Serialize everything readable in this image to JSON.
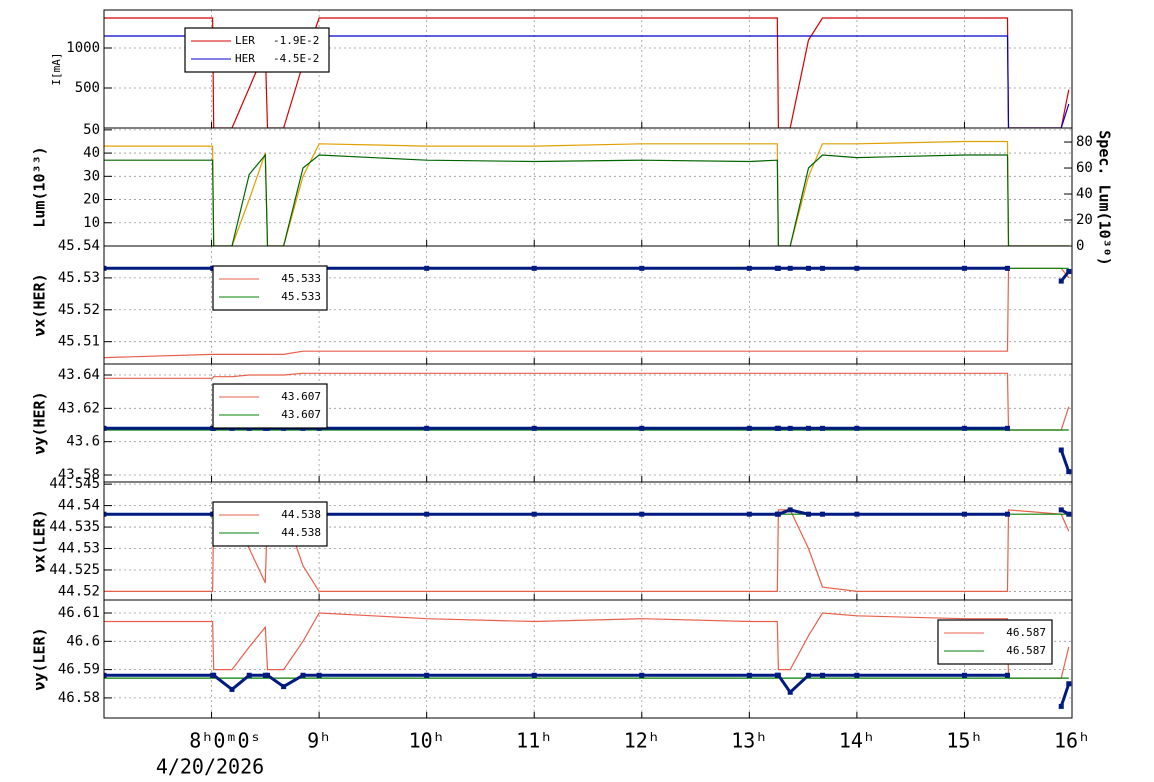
{
  "chart_data": {
    "type": "line",
    "xlim": [
      7,
      16
    ],
    "xticks": [
      {
        "value": 8,
        "label": "8ʰ0ᵐ0ˢ"
      },
      {
        "value": 9,
        "label": "9ʰ"
      },
      {
        "value": 10,
        "label": "10ʰ"
      },
      {
        "value": 11,
        "label": "11ʰ"
      },
      {
        "value": 12,
        "label": "12ʰ"
      },
      {
        "value": 13,
        "label": "13ʰ"
      },
      {
        "value": 14,
        "label": "14ʰ"
      },
      {
        "value": 15,
        "label": "15ʰ"
      },
      {
        "value": 16,
        "label": "16ʰ"
      }
    ],
    "xlabel": "4/20/2026",
    "grid": true,
    "x": [
      7.0,
      8.01,
      8.02,
      8.19,
      8.35,
      8.5,
      8.52,
      8.67,
      8.85,
      9.0,
      10,
      11,
      12,
      13,
      13.26,
      13.27,
      13.38,
      13.55,
      13.68,
      14,
      15,
      15.4,
      15.41,
      15.9,
      15.97
    ],
    "panels": [
      {
        "ylabel": "I[mA]",
        "ylim": [
          0,
          1475
        ],
        "yticks": [
          500,
          1000
        ],
        "legend": "upper left",
        "series": [
          {
            "name": "LER",
            "legend_value": "-1.9E-2",
            "color": "#d40000",
            "values": [
              1375,
              1375,
              0,
              0,
              500,
              975,
              0,
              0,
              800,
              1375,
              1375,
              1375,
              1375,
              1375,
              1375,
              0,
              0,
              1100,
              1375,
              1375,
              1375,
              1375,
              0,
              0,
              480
            ]
          },
          {
            "name": "HER",
            "legend_value": "-4.5E-2",
            "color": "#0000cc",
            "values": [
              1150,
              1150,
              1150,
              1150,
              1150,
              1150,
              1150,
              1150,
              1150,
              1150,
              1150,
              1150,
              1150,
              1150,
              1150,
              1150,
              1150,
              1150,
              1150,
              1150,
              1150,
              1150,
              0,
              0,
              300
            ]
          }
        ]
      },
      {
        "ylabel": "Lum(10³³)",
        "ylim": [
          0,
          50.8
        ],
        "yticks": [
          10,
          20,
          30,
          40,
          50
        ],
        "y2label": "Spec. Lum(10³⁰)",
        "y2lim": [
          0,
          90.8
        ],
        "y2ticks": [
          0,
          20,
          40,
          60,
          80
        ],
        "series": [
          {
            "color": "#e0a000",
            "values": [
              43,
              43,
              0,
              0,
              20,
              40,
              0,
              0,
              30,
              44,
              43,
              43,
              44,
              44,
              44,
              0,
              0,
              30,
              44,
              44,
              45,
              45,
              0,
              0,
              0
            ]
          },
          {
            "color": "#006400",
            "axis": "y2",
            "values": [
              66,
              66,
              0,
              0,
              55,
              70,
              0,
              0,
              60,
              70,
              66,
              65,
              66,
              65,
              66,
              0,
              0,
              60,
              70,
              68,
              70,
              70,
              0,
              0,
              0
            ]
          }
        ]
      },
      {
        "ylabel": "νx(HER)",
        "ylim": [
          45.503,
          45.54
        ],
        "yticks": [
          45.51,
          45.52,
          45.53,
          45.54
        ],
        "legend": "upper left",
        "series": [
          {
            "name": "45.533",
            "color": "#e8604c",
            "values": [
              45.505,
              45.506,
              45.506,
              45.506,
              45.506,
              45.506,
              45.506,
              45.506,
              45.507,
              45.507,
              45.507,
              45.507,
              45.507,
              45.507,
              45.507,
              45.507,
              45.507,
              45.507,
              45.507,
              45.507,
              45.507,
              45.507,
              45.533,
              45.533,
              45.53
            ]
          },
          {
            "name": "45.533",
            "color": "#008000",
            "values": [
              45.533,
              45.533,
              45.533,
              45.533,
              45.533,
              45.533,
              45.533,
              45.533,
              45.533,
              45.533,
              45.533,
              45.533,
              45.533,
              45.533,
              45.533,
              45.533,
              45.533,
              45.533,
              45.533,
              45.533,
              45.533,
              45.533,
              45.533,
              45.533,
              45.533
            ]
          },
          {
            "color": "#001a80",
            "marker": "square",
            "values": [
              45.533,
              45.533,
              45.533,
              45.533,
              45.533,
              45.533,
              45.533,
              45.533,
              45.533,
              45.533,
              45.533,
              45.533,
              45.533,
              45.533,
              45.533,
              45.533,
              45.533,
              45.533,
              45.533,
              45.533,
              45.533,
              45.533,
              null,
              45.529,
              45.532
            ]
          }
        ]
      },
      {
        "ylabel": "νy(HER)",
        "ylim": [
          43.5758,
          43.6466
        ],
        "yticks": [
          43.58,
          43.6,
          43.62,
          43.64
        ],
        "legend": "upper left",
        "series": [
          {
            "name": "43.607",
            "color": "#e8604c",
            "values": [
              43.638,
              43.638,
              43.639,
              43.639,
              43.64,
              43.64,
              43.64,
              43.64,
              43.641,
              43.641,
              43.641,
              43.641,
              43.641,
              43.641,
              43.641,
              43.641,
              43.641,
              43.641,
              43.641,
              43.641,
              43.641,
              43.641,
              43.607,
              43.607,
              43.621
            ]
          },
          {
            "name": "43.607",
            "color": "#008000",
            "values": [
              43.607,
              43.607,
              43.607,
              43.607,
              43.607,
              43.607,
              43.607,
              43.607,
              43.607,
              43.607,
              43.607,
              43.607,
              43.607,
              43.607,
              43.607,
              43.607,
              43.607,
              43.607,
              43.607,
              43.607,
              43.607,
              43.607,
              43.607,
              43.607,
              43.607
            ]
          },
          {
            "color": "#001a80",
            "marker": "square",
            "values": [
              43.608,
              43.608,
              43.608,
              43.608,
              43.608,
              43.608,
              43.608,
              43.608,
              43.608,
              43.608,
              43.608,
              43.608,
              43.608,
              43.608,
              43.608,
              43.608,
              43.608,
              43.608,
              43.608,
              43.608,
              43.608,
              43.608,
              null,
              43.595,
              43.582
            ]
          }
        ]
      },
      {
        "ylabel": "νx(LER)",
        "ylim": [
          44.518,
          44.5455
        ],
        "yticks": [
          44.52,
          44.525,
          44.53,
          44.535,
          44.54,
          44.545
        ],
        "legend": "upper left",
        "series": [
          {
            "name": "44.538",
            "color": "#e8604c",
            "values": [
              44.52,
              44.52,
              44.539,
              44.539,
              44.53,
              44.522,
              44.539,
              44.539,
              44.526,
              44.52,
              44.52,
              44.52,
              44.52,
              44.52,
              44.52,
              44.539,
              44.539,
              44.53,
              44.521,
              44.52,
              44.52,
              44.52,
              44.539,
              44.538,
              44.534
            ]
          },
          {
            "name": "44.538",
            "color": "#008000",
            "values": [
              44.538,
              44.538,
              44.538,
              44.538,
              44.538,
              44.538,
              44.538,
              44.538,
              44.538,
              44.538,
              44.538,
              44.538,
              44.538,
              44.538,
              44.538,
              44.538,
              44.538,
              44.538,
              44.538,
              44.538,
              44.538,
              44.538,
              44.538,
              44.538,
              44.538
            ]
          },
          {
            "color": "#001a80",
            "marker": "square",
            "values": [
              44.538,
              44.538,
              44.538,
              44.539,
              44.539,
              44.539,
              44.538,
              44.539,
              44.539,
              44.538,
              44.538,
              44.538,
              44.538,
              44.538,
              44.538,
              44.538,
              44.539,
              44.538,
              44.538,
              44.538,
              44.538,
              44.538,
              null,
              44.539,
              44.538
            ]
          }
        ]
      },
      {
        "ylabel": "νy(LER)",
        "ylim": [
          46.5729,
          46.6146
        ],
        "yticks": [
          46.58,
          46.59,
          46.6,
          46.61
        ],
        "legend": "upper right",
        "series": [
          {
            "name": "46.587",
            "color": "#e8604c",
            "values": [
              46.607,
              46.607,
              46.59,
              46.59,
              46.598,
              46.605,
              46.59,
              46.59,
              46.6,
              46.61,
              46.608,
              46.607,
              46.608,
              46.607,
              46.607,
              46.59,
              46.59,
              46.602,
              46.61,
              46.609,
              46.608,
              46.608,
              46.587,
              46.587,
              46.598
            ]
          },
          {
            "name": "46.587",
            "color": "#008000",
            "values": [
              46.587,
              46.587,
              46.587,
              46.587,
              46.587,
              46.587,
              46.587,
              46.587,
              46.587,
              46.587,
              46.587,
              46.587,
              46.587,
              46.587,
              46.587,
              46.587,
              46.587,
              46.587,
              46.587,
              46.587,
              46.587,
              46.587,
              46.587,
              46.587,
              46.587
            ]
          },
          {
            "color": "#001a80",
            "marker": "square",
            "values": [
              46.588,
              46.588,
              46.588,
              46.583,
              46.588,
              46.588,
              46.588,
              46.584,
              46.588,
              46.588,
              46.588,
              46.588,
              46.588,
              46.588,
              46.588,
              46.588,
              46.582,
              46.588,
              46.588,
              46.588,
              46.588,
              46.588,
              null,
              46.577,
              46.585
            ]
          }
        ]
      }
    ]
  }
}
